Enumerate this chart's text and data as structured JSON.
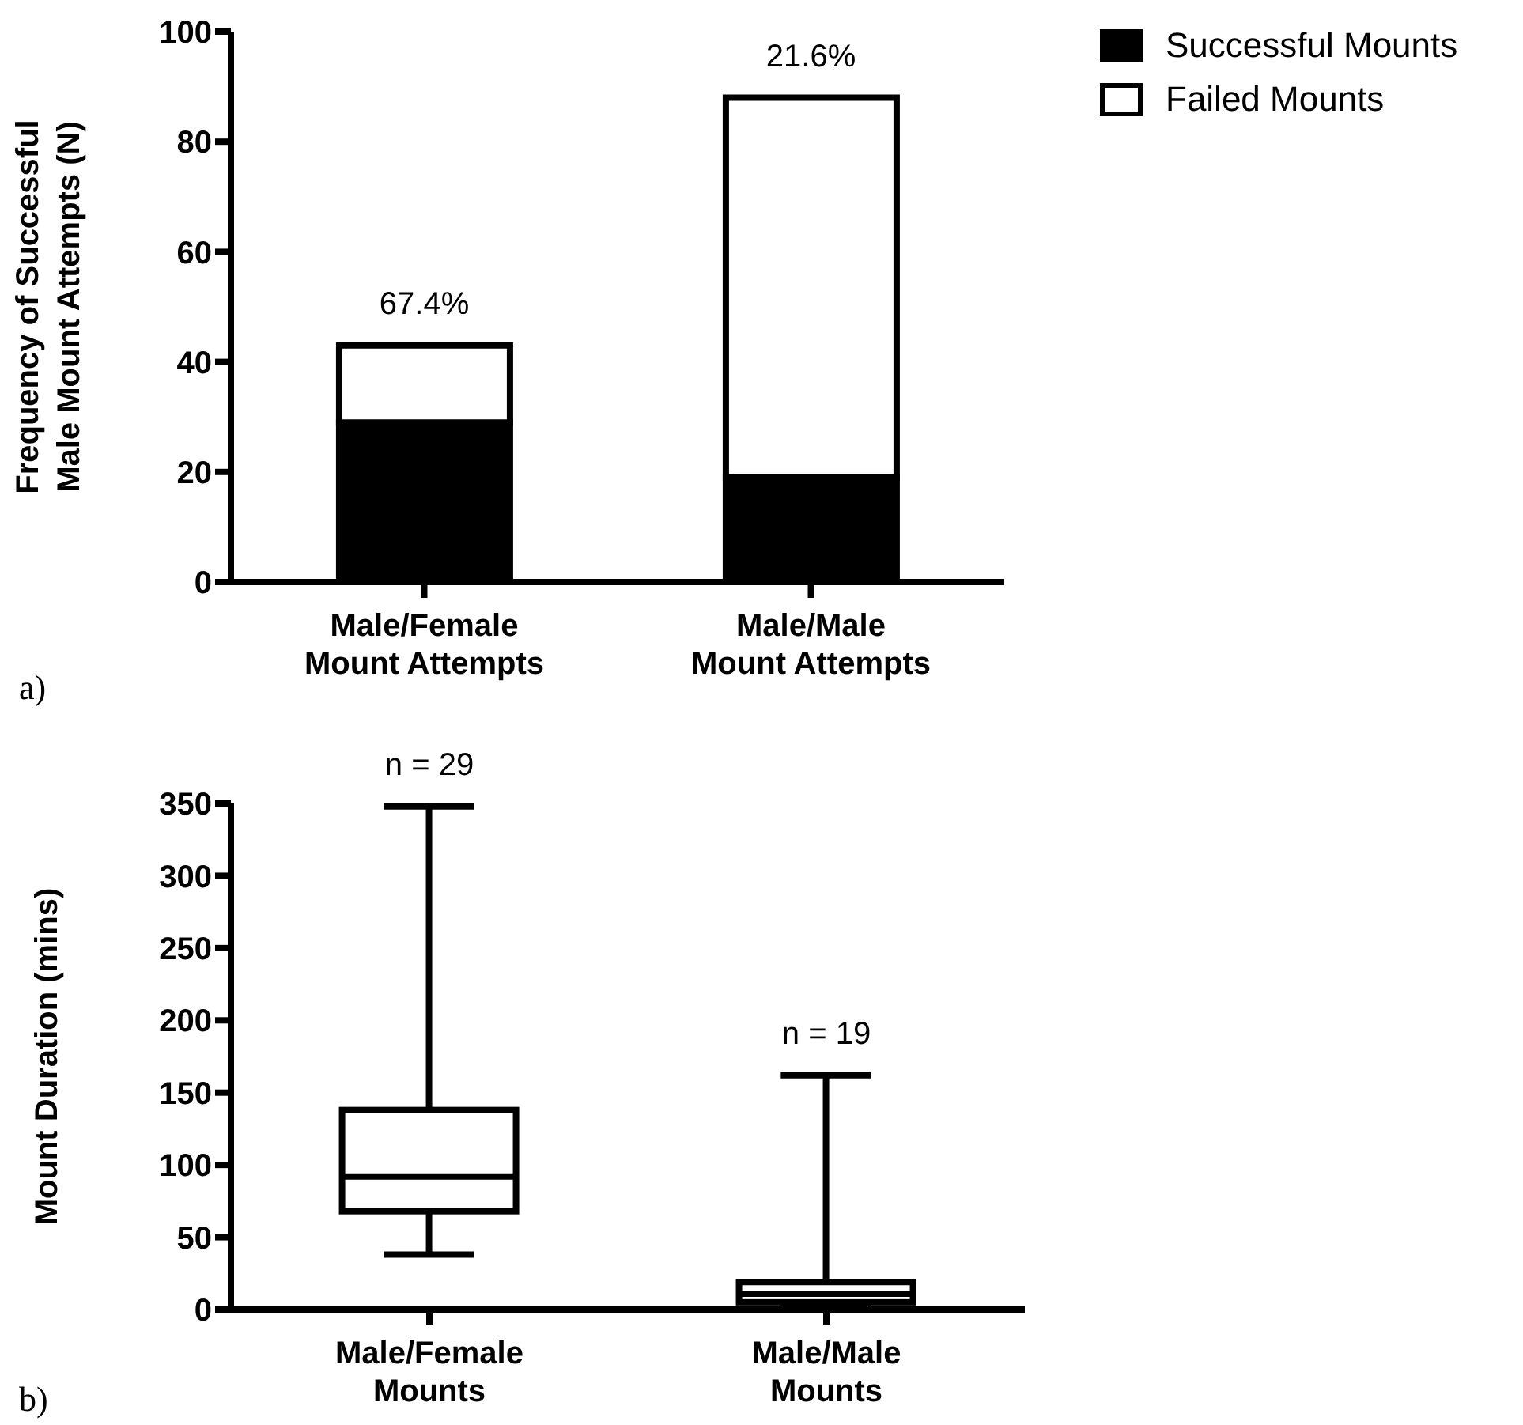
{
  "chart_data": [
    {
      "type": "bar",
      "stacked": true,
      "ylabel": "Frequency of Successful\nMale Mount Attempts (N)",
      "categories": [
        "Male/Female\nMount Attempts",
        "Male/Male\nMount Attempts"
      ],
      "series": [
        {
          "name": "Successful Mounts",
          "color": "#000000",
          "values": [
            29,
            19
          ]
        },
        {
          "name": "Failed Mounts",
          "color": "#ffffff",
          "values": [
            14,
            69
          ]
        }
      ],
      "ylim": [
        0,
        100
      ],
      "yticks": [
        0,
        20,
        40,
        60,
        80,
        100
      ],
      "legend": "top right",
      "annotations": [
        {
          "text": "67.4%",
          "x": "Male/Female\nMount Attempts",
          "y": 43
        },
        {
          "text": "21.6%",
          "x": "Male/Male\nMount Attempts",
          "y": 88
        },
        "a)"
      ]
    },
    {
      "type": "box",
      "ylabel": "Mount Duration (mins)",
      "categories": [
        "Male/Female\nMounts",
        "Male/Male\nMounts"
      ],
      "boxes": [
        {
          "low": 38,
          "q1": 68,
          "median": 92,
          "q3": 138,
          "high": 348
        },
        {
          "low": 2,
          "q1": 5,
          "median": 11,
          "q3": 19,
          "high": 162
        }
      ],
      "ylim": [
        0,
        350
      ],
      "yticks": [
        0,
        50,
        100,
        150,
        200,
        250,
        300,
        350
      ],
      "annotations": [
        {
          "text": "n = 29",
          "x": "Male/Female\nMounts",
          "y": 348
        },
        {
          "text": "n = 19",
          "x": "Male/Male\nMounts",
          "y": 162
        },
        "b)"
      ]
    }
  ]
}
